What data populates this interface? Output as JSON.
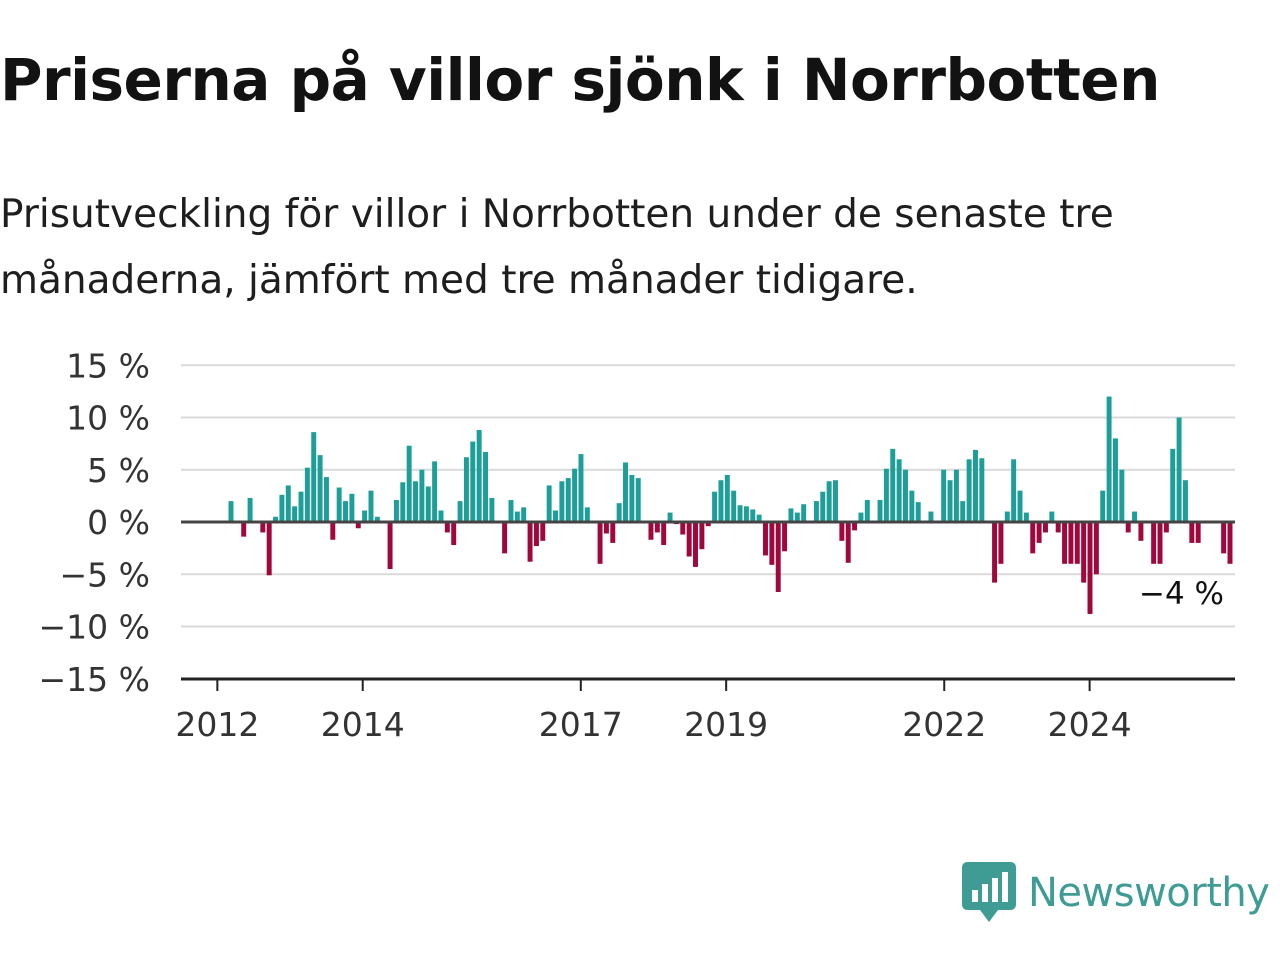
{
  "header": {
    "title": "Priserna på villor sjönk i Norrbotten",
    "subtitle": "Prisutveckling för villor i Norrbotten under de senaste tre månaderna, jämfört med tre månader tidigare."
  },
  "brand": {
    "name": "Newsworthy",
    "color": "#3e9c94",
    "icon": "newsworthy-logo-icon"
  },
  "colors": {
    "positive": "#1e9e98",
    "negative": "#a0083d",
    "grid": "#d9d9d9",
    "zero_line": "#444444"
  },
  "chart_data": {
    "type": "bar",
    "ylim": [
      -15,
      15
    ],
    "yticks": [
      15,
      10,
      5,
      0,
      -5,
      -10,
      -15
    ],
    "ytick_labels": [
      "15 %",
      "10 %",
      "5 %",
      "0 %",
      "−5 %",
      "−10 %",
      "−15 %"
    ],
    "xticks": [
      2012,
      2014,
      2017,
      2019,
      2022,
      2024
    ],
    "xtick_labels": [
      "2012",
      "2014",
      "2017",
      "2019",
      "2022",
      "2024"
    ],
    "x_start": 2011.5,
    "x_end": 2026,
    "grid": true,
    "last_value_label": "−4 %",
    "values": [
      2,
      0,
      -1.4,
      2.3,
      0,
      -1,
      -5.1,
      0.5,
      2.6,
      3.5,
      1.5,
      2.9,
      5.2,
      8.6,
      6.4,
      4.3,
      -1.7,
      3.3,
      2,
      2.7,
      -0.6,
      1.1,
      3,
      0.5,
      0,
      -4.5,
      2.1,
      3.8,
      7.3,
      3.9,
      5,
      3.4,
      5.8,
      1.1,
      -1,
      -2.2,
      2,
      6.2,
      7.7,
      8.8,
      6.7,
      2.3,
      0,
      -3,
      2.1,
      1,
      1.4,
      -3.8,
      -2.3,
      -1.8,
      3.5,
      1.1,
      3.9,
      4.2,
      5.1,
      6.5,
      1.4,
      0,
      -4,
      -1.1,
      -2,
      1.8,
      5.7,
      4.5,
      4.2,
      0,
      -1.7,
      -1,
      -2.2,
      0.9,
      -0.2,
      -1.2,
      -3.3,
      -4.3,
      -2.6,
      -0.4,
      2.9,
      4,
      4.5,
      3,
      1.6,
      1.5,
      1.2,
      0.7,
      -3.2,
      -4.1,
      -6.7,
      -2.8,
      1.3,
      0.9,
      1.7,
      0,
      2,
      2.9,
      3.9,
      4,
      -1.8,
      -3.9,
      -0.8,
      0.9,
      2.1,
      0,
      2.1,
      5.1,
      7,
      6,
      5,
      3,
      1.9,
      0,
      1,
      0,
      5,
      4,
      5,
      2,
      6,
      6.9,
      6.1,
      0,
      -5.8,
      -4,
      1,
      6,
      3,
      0.9,
      -3,
      -2,
      -1,
      1,
      -1,
      -4,
      -4,
      -4,
      -5.8,
      -8.8,
      -5,
      3,
      12,
      8,
      5,
      -1,
      1,
      -1.8,
      0,
      -4,
      -4,
      -1,
      7,
      10,
      4,
      -2,
      -2,
      0,
      0,
      0,
      -3,
      -4
    ]
  }
}
